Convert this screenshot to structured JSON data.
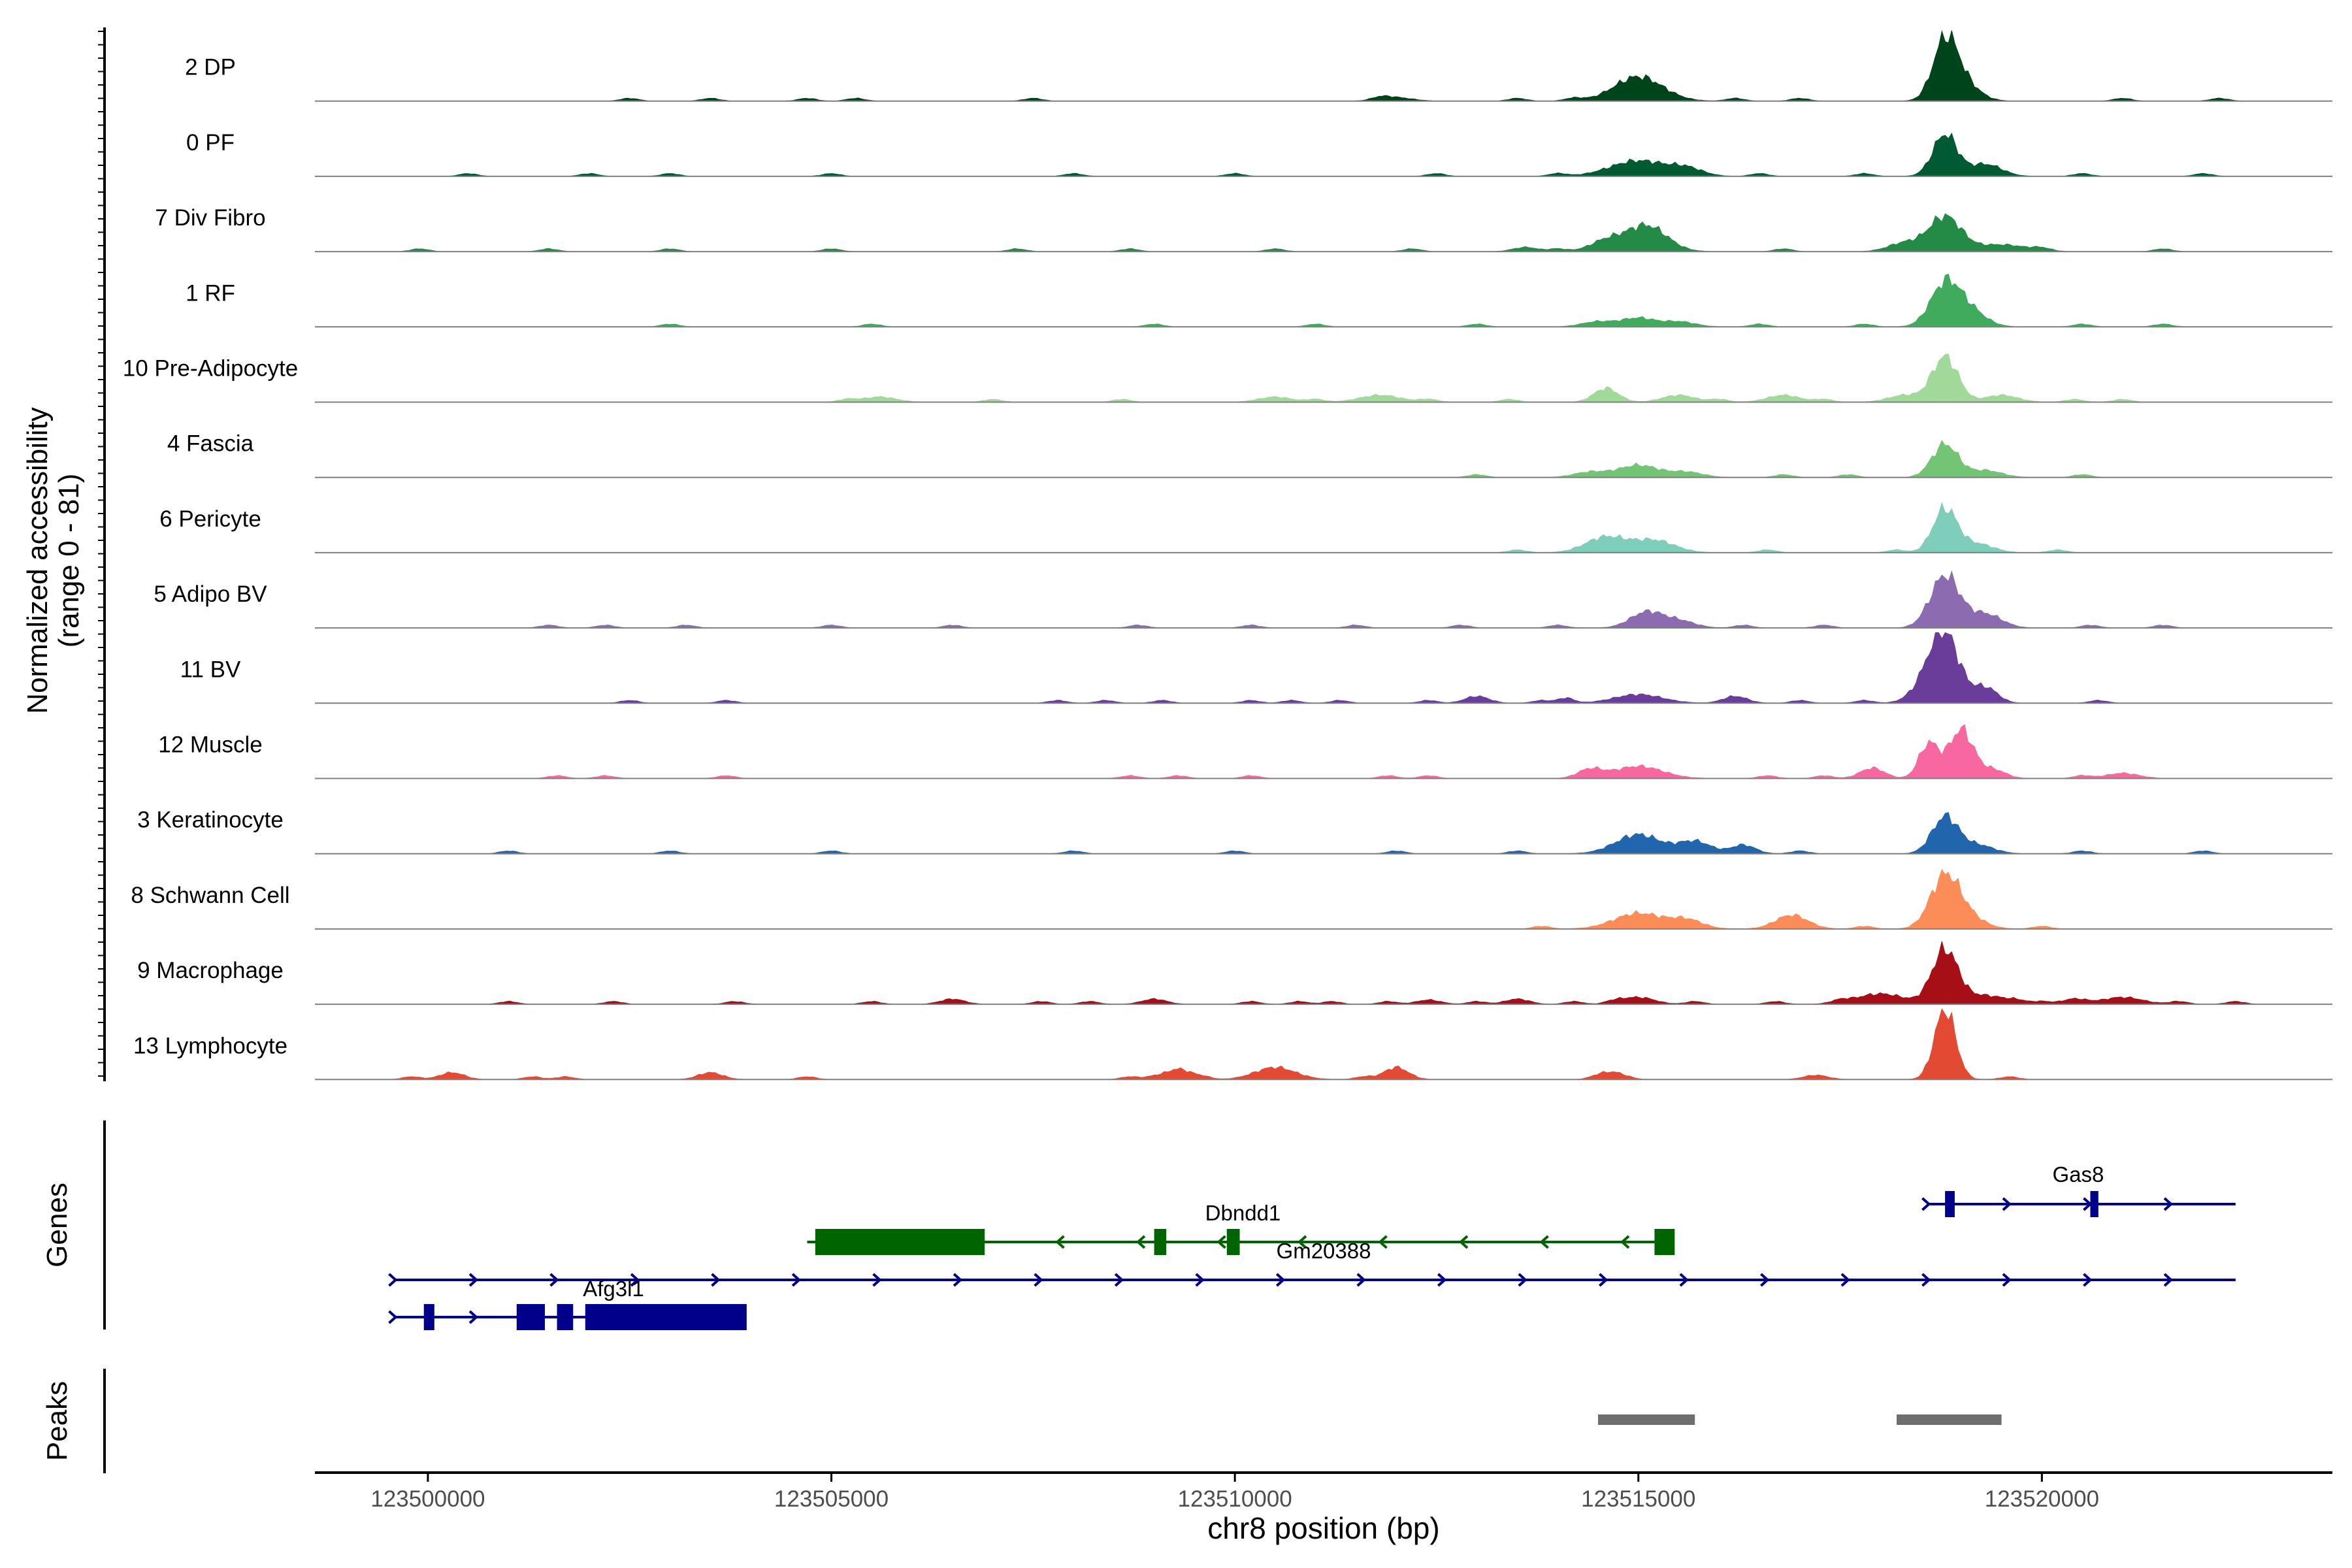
{
  "chart_data": {
    "type": "area",
    "title": "",
    "ylabel_line1": "Normalized accessibility",
    "ylabel_line2": "(range 0 - 81)",
    "xlabel": "chr8 position (bp)",
    "xlim": [
      123498600,
      123523600
    ],
    "ylim": [
      0,
      81
    ],
    "x_ticks": [
      123500000,
      123505000,
      123510000,
      123515000,
      123520000
    ],
    "x_tick_labels": [
      "123500000",
      "123505000",
      "123510000",
      "123515000",
      "123520000"
    ],
    "series": [
      {
        "name": "2 DP",
        "color": "#00441b",
        "peaks": [
          [
            123515000,
            28,
            300
          ],
          [
            123518800,
            62,
            150
          ],
          [
            123519000,
            22,
            200
          ],
          [
            123512000,
            4,
            200
          ]
        ],
        "noise": [
          123502500,
          123503500,
          123504700,
          123505300,
          123507500,
          123511800,
          123513500,
          123514200,
          123516200,
          123517000,
          123521000,
          123522200
        ]
      },
      {
        "name": "0 PF",
        "color": "#005a32",
        "peaks": [
          [
            123515000,
            18,
            350
          ],
          [
            123515600,
            8,
            200
          ],
          [
            123518800,
            48,
            150
          ],
          [
            123519300,
            14,
            200
          ]
        ],
        "noise": [
          123500500,
          123502000,
          123503000,
          123505000,
          123508000,
          123510000,
          123512500,
          123514000,
          123516500,
          123517800,
          123520500,
          123522000
        ]
      },
      {
        "name": "7 Div Fibro",
        "color": "#238b45",
        "peaks": [
          [
            123514600,
            12,
            200
          ],
          [
            123515100,
            30,
            250
          ],
          [
            123518300,
            10,
            200
          ],
          [
            123518800,
            40,
            200
          ],
          [
            123519500,
            8,
            300
          ],
          [
            123513600,
            5,
            150
          ]
        ],
        "noise": [
          123499900,
          123501500,
          123503000,
          123505000,
          123507300,
          123508700,
          123510500,
          123512200,
          123514000,
          123516800,
          123520000,
          123521500
        ]
      },
      {
        "name": "1 RF",
        "color": "#41ab5d",
        "peaks": [
          [
            123514500,
            6,
            200
          ],
          [
            123515000,
            10,
            200
          ],
          [
            123515500,
            6,
            200
          ],
          [
            123518800,
            48,
            180
          ],
          [
            123519100,
            18,
            200
          ]
        ],
        "noise": [
          123503000,
          123505500,
          123509000,
          123511000,
          123513000,
          123516500,
          123517800,
          123520500,
          123521500
        ]
      },
      {
        "name": "10 Pre-Adipocyte",
        "color": "#a1d99b",
        "peaks": [
          [
            123514600,
            16,
            150
          ],
          [
            123515500,
            8,
            200
          ],
          [
            123516800,
            8,
            200
          ],
          [
            123518300,
            8,
            200
          ],
          [
            123518800,
            52,
            160
          ],
          [
            123519500,
            8,
            200
          ],
          [
            123505600,
            6,
            200
          ],
          [
            123510500,
            6,
            200
          ],
          [
            123511800,
            8,
            250
          ]
        ],
        "noise": [
          123505200,
          123507000,
          123508600,
          123511000,
          123512400,
          123513400,
          123516000,
          123517300,
          123520400,
          123521000
        ]
      },
      {
        "name": "4 Fascia",
        "color": "#74c476",
        "peaks": [
          [
            123514400,
            6,
            200
          ],
          [
            123515000,
            14,
            250
          ],
          [
            123515600,
            6,
            200
          ],
          [
            123518800,
            38,
            160
          ],
          [
            123519300,
            8,
            200
          ]
        ],
        "noise": [
          123513000,
          123516800,
          123517600,
          123520500
        ]
      },
      {
        "name": "6 Pericyte",
        "color": "#7fcdbb",
        "peaks": [
          [
            123514600,
            18,
            250
          ],
          [
            123515200,
            14,
            250
          ],
          [
            123518800,
            50,
            150
          ],
          [
            123519200,
            10,
            200
          ]
        ],
        "noise": [
          123513500,
          123516600,
          123518200,
          123520200
        ]
      },
      {
        "name": "5 Adipo BV",
        "color": "#8c6bb1",
        "peaks": [
          [
            123515100,
            18,
            200
          ],
          [
            123515500,
            8,
            200
          ],
          [
            123518800,
            60,
            180
          ],
          [
            123519300,
            16,
            200
          ]
        ],
        "noise": [
          123501500,
          123502200,
          123503200,
          123505000,
          123506500,
          123508800,
          123510200,
          123511500,
          123512800,
          123514000,
          123516300,
          123517300,
          123520600,
          123521500
        ]
      },
      {
        "name": "11 BV",
        "color": "#6a3d9a",
        "peaks": [
          [
            123515000,
            10,
            300
          ],
          [
            123516200,
            8,
            150
          ],
          [
            123518600,
            20,
            200
          ],
          [
            123518800,
            72,
            180
          ],
          [
            123519300,
            18,
            150
          ],
          [
            123514100,
            6,
            100
          ],
          [
            123513000,
            8,
            150
          ]
        ],
        "noise": [
          123502500,
          123503700,
          123507800,
          123508400,
          123509100,
          123510200,
          123510700,
          123511300,
          123512400,
          123513800,
          123517000,
          123517800,
          123520700
        ]
      },
      {
        "name": "12 Muscle",
        "color": "#f768a1",
        "peaks": [
          [
            123514400,
            10,
            150
          ],
          [
            123515000,
            14,
            300
          ],
          [
            123517900,
            12,
            150
          ],
          [
            123518600,
            40,
            120
          ],
          [
            123519000,
            56,
            150
          ],
          [
            123519400,
            10,
            150
          ],
          [
            123521000,
            6,
            200
          ]
        ],
        "noise": [
          123501600,
          123502200,
          123503700,
          123508700,
          123509300,
          123510200,
          123511900,
          123512400,
          123516600,
          123517300,
          123520500
        ]
      },
      {
        "name": "3 Keratinocyte",
        "color": "#2166ac",
        "peaks": [
          [
            123515000,
            22,
            280
          ],
          [
            123515700,
            14,
            200
          ],
          [
            123516300,
            10,
            150
          ],
          [
            123518800,
            42,
            160
          ],
          [
            123519200,
            10,
            200
          ]
        ],
        "noise": [
          123501000,
          123503000,
          123505000,
          123508000,
          123510000,
          123512000,
          123513500,
          123517000,
          123520500,
          123522000
        ]
      },
      {
        "name": "8 Schwann Cell",
        "color": "#fc8d59",
        "peaks": [
          [
            123515000,
            18,
            300
          ],
          [
            123515600,
            10,
            200
          ],
          [
            123516900,
            16,
            200
          ],
          [
            123518800,
            60,
            180
          ],
          [
            123519100,
            12,
            200
          ]
        ],
        "noise": [
          123513800,
          123517800,
          123520000
        ]
      },
      {
        "name": "9 Macrophage",
        "color": "#a50f15",
        "peaks": [
          [
            123518000,
            12,
            300
          ],
          [
            123518800,
            62,
            160
          ],
          [
            123519300,
            10,
            250
          ],
          [
            123515000,
            8,
            200
          ],
          [
            123521000,
            8,
            250
          ],
          [
            123520400,
            6,
            150
          ],
          [
            123512400,
            5,
            150
          ],
          [
            123513500,
            6,
            150
          ],
          [
            123509000,
            6,
            150
          ],
          [
            123506500,
            6,
            150
          ]
        ],
        "noise": [
          123501000,
          123502300,
          123503800,
          123505500,
          123507600,
          123508200,
          123510200,
          123510800,
          123511200,
          123511900,
          123513000,
          123514200,
          123514700,
          123515700,
          123516700,
          123517500,
          123519700,
          123520000,
          123521700,
          123522400
        ]
      },
      {
        "name": "13 Lymphocyte",
        "color": "#e34a33",
        "peaks": [
          [
            123518800,
            81,
            130
          ],
          [
            123509300,
            12,
            150
          ],
          [
            123510500,
            14,
            250
          ],
          [
            123512000,
            14,
            150
          ],
          [
            123514700,
            8,
            150
          ],
          [
            123500300,
            8,
            150
          ],
          [
            123503500,
            8,
            150
          ],
          [
            123517200,
            5,
            150
          ]
        ],
        "noise": [
          123499800,
          123501300,
          123501700,
          123504700,
          123508700,
          123509000,
          123509600,
          123511600,
          123514500,
          123519600
        ]
      }
    ],
    "genes_track": {
      "label": "Genes",
      "names": [
        "Gas8",
        "Dbndd1",
        "Gm20388",
        "Afg3l1"
      ]
    },
    "peaks_track": {
      "label": "Peaks",
      "regions": [
        [
          123514500,
          123515700
        ],
        [
          123518200,
          123519500
        ]
      ]
    },
    "colors": {
      "gene_plus": "#00008b",
      "gene_minus": "#006400",
      "peak_bar": "#6e6e6e",
      "baseline": "#7f7f7f",
      "axis": "#000000"
    }
  }
}
